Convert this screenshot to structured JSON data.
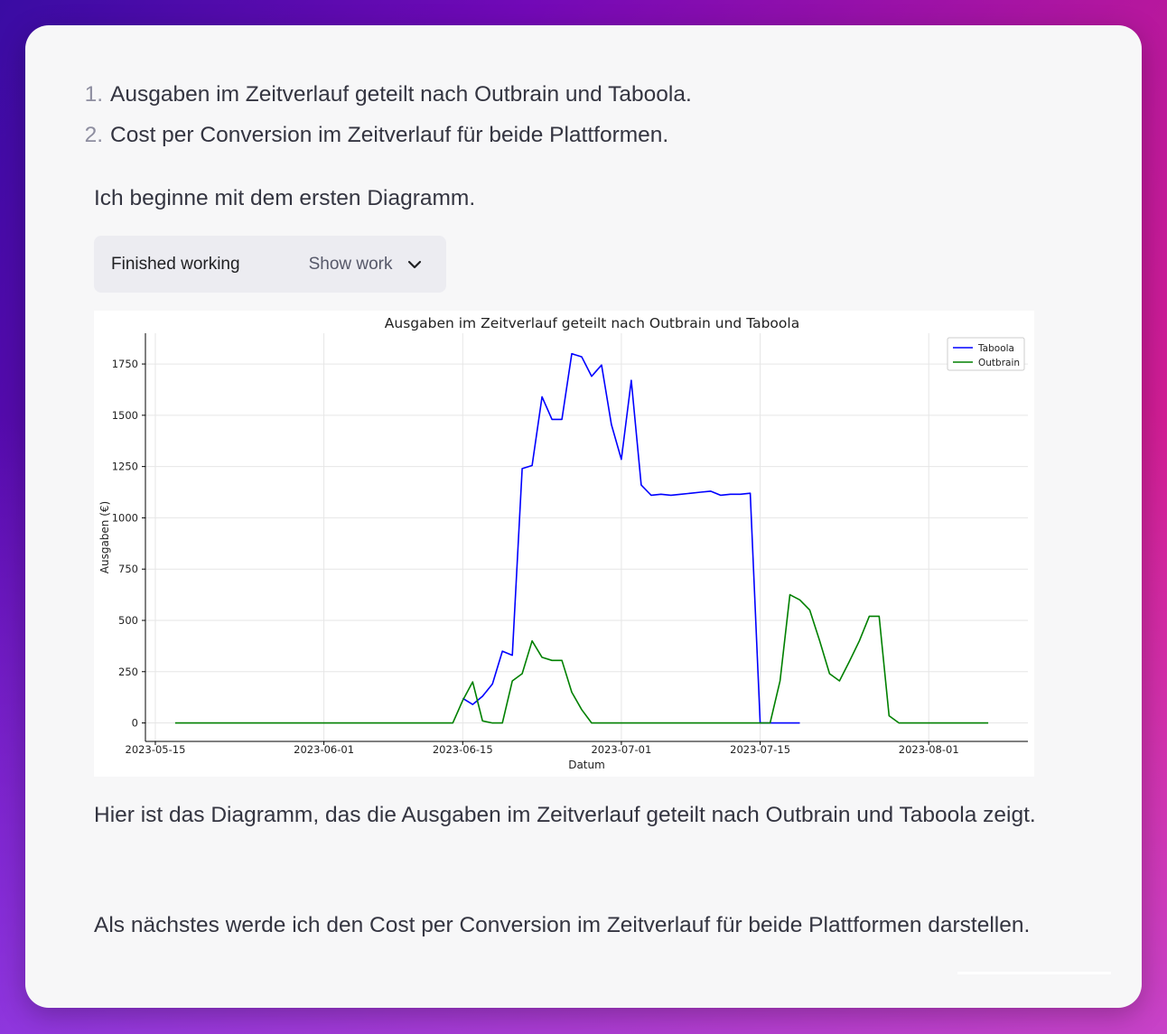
{
  "intro_list": [
    {
      "num": "1.",
      "text": "Ausgaben im Zeitverlauf geteilt nach Outbrain und Taboola."
    },
    {
      "num": "2.",
      "text": "Cost per Conversion im Zeitverlauf für beide Plattformen."
    }
  ],
  "para_start": "Ich beginne mit dem ersten Diagramm.",
  "work_status": {
    "status_label": "Finished working",
    "toggle_label": "Show work",
    "toggle_icon": "chevron-down-icon"
  },
  "para_after_chart": "Hier ist das Diagramm, das die Ausgaben im Zeitverlauf geteilt nach Outbrain und Taboola zeigt.",
  "para_next": "Als nächstes werde ich den Cost per Conversion im Zeitverlauf für beide Plattformen darstellen.",
  "chart_data": {
    "type": "line",
    "title": "Ausgaben im Zeitverlauf geteilt nach Outbrain und Taboola",
    "xlabel": "Datum",
    "ylabel": "Ausgaben (€)",
    "xlim": [
      "2023-05-14",
      "2023-08-11"
    ],
    "ylim": [
      -90,
      1900
    ],
    "x_ticks": [
      "2023-05-15",
      "2023-06-01",
      "2023-06-15",
      "2023-07-01",
      "2023-07-15",
      "2023-08-01"
    ],
    "y_ticks": [
      0,
      250,
      500,
      750,
      1000,
      1250,
      1500,
      1750
    ],
    "grid": true,
    "legend_position": "top-right",
    "series": [
      {
        "name": "Taboola",
        "color": "#0000ff",
        "points": [
          [
            "2023-06-15",
            120
          ],
          [
            "2023-06-16",
            90
          ],
          [
            "2023-06-17",
            130
          ],
          [
            "2023-06-18",
            190
          ],
          [
            "2023-06-19",
            350
          ],
          [
            "2023-06-20",
            330
          ],
          [
            "2023-06-21",
            1240
          ],
          [
            "2023-06-22",
            1255
          ],
          [
            "2023-06-23",
            1590
          ],
          [
            "2023-06-24",
            1480
          ],
          [
            "2023-06-25",
            1480
          ],
          [
            "2023-06-26",
            1800
          ],
          [
            "2023-06-27",
            1785
          ],
          [
            "2023-06-28",
            1690
          ],
          [
            "2023-06-29",
            1745
          ],
          [
            "2023-06-30",
            1455
          ],
          [
            "2023-07-01",
            1285
          ],
          [
            "2023-07-02",
            1670
          ],
          [
            "2023-07-03",
            1160
          ],
          [
            "2023-07-04",
            1110
          ],
          [
            "2023-07-05",
            1115
          ],
          [
            "2023-07-06",
            1110
          ],
          [
            "2023-07-07",
            1115
          ],
          [
            "2023-07-08",
            1120
          ],
          [
            "2023-07-09",
            1125
          ],
          [
            "2023-07-10",
            1130
          ],
          [
            "2023-07-11",
            1110
          ],
          [
            "2023-07-12",
            1115
          ],
          [
            "2023-07-13",
            1115
          ],
          [
            "2023-07-14",
            1120
          ],
          [
            "2023-07-15",
            0
          ],
          [
            "2023-07-16",
            0
          ],
          [
            "2023-07-17",
            0
          ],
          [
            "2023-07-18",
            0
          ],
          [
            "2023-07-19",
            0
          ]
        ]
      },
      {
        "name": "Outbrain",
        "color": "#008000",
        "points": [
          [
            "2023-05-17",
            0
          ],
          [
            "2023-05-20",
            0
          ],
          [
            "2023-05-25",
            0
          ],
          [
            "2023-05-30",
            0
          ],
          [
            "2023-06-05",
            0
          ],
          [
            "2023-06-10",
            0
          ],
          [
            "2023-06-14",
            0
          ],
          [
            "2023-06-15",
            110
          ],
          [
            "2023-06-16",
            200
          ],
          [
            "2023-06-17",
            10
          ],
          [
            "2023-06-18",
            0
          ],
          [
            "2023-06-19",
            0
          ],
          [
            "2023-06-20",
            205
          ],
          [
            "2023-06-21",
            240
          ],
          [
            "2023-06-22",
            400
          ],
          [
            "2023-06-23",
            320
          ],
          [
            "2023-06-24",
            305
          ],
          [
            "2023-06-25",
            305
          ],
          [
            "2023-06-26",
            150
          ],
          [
            "2023-06-27",
            65
          ],
          [
            "2023-06-28",
            0
          ],
          [
            "2023-07-05",
            0
          ],
          [
            "2023-07-10",
            0
          ],
          [
            "2023-07-16",
            0
          ],
          [
            "2023-07-17",
            205
          ],
          [
            "2023-07-18",
            625
          ],
          [
            "2023-07-19",
            600
          ],
          [
            "2023-07-20",
            550
          ],
          [
            "2023-07-21",
            400
          ],
          [
            "2023-07-22",
            240
          ],
          [
            "2023-07-23",
            205
          ],
          [
            "2023-07-24",
            300
          ],
          [
            "2023-07-25",
            400
          ],
          [
            "2023-07-26",
            520
          ],
          [
            "2023-07-27",
            520
          ],
          [
            "2023-07-28",
            35
          ],
          [
            "2023-07-29",
            0
          ],
          [
            "2023-08-01",
            0
          ],
          [
            "2023-08-05",
            0
          ],
          [
            "2023-08-07",
            0
          ]
        ]
      }
    ]
  }
}
